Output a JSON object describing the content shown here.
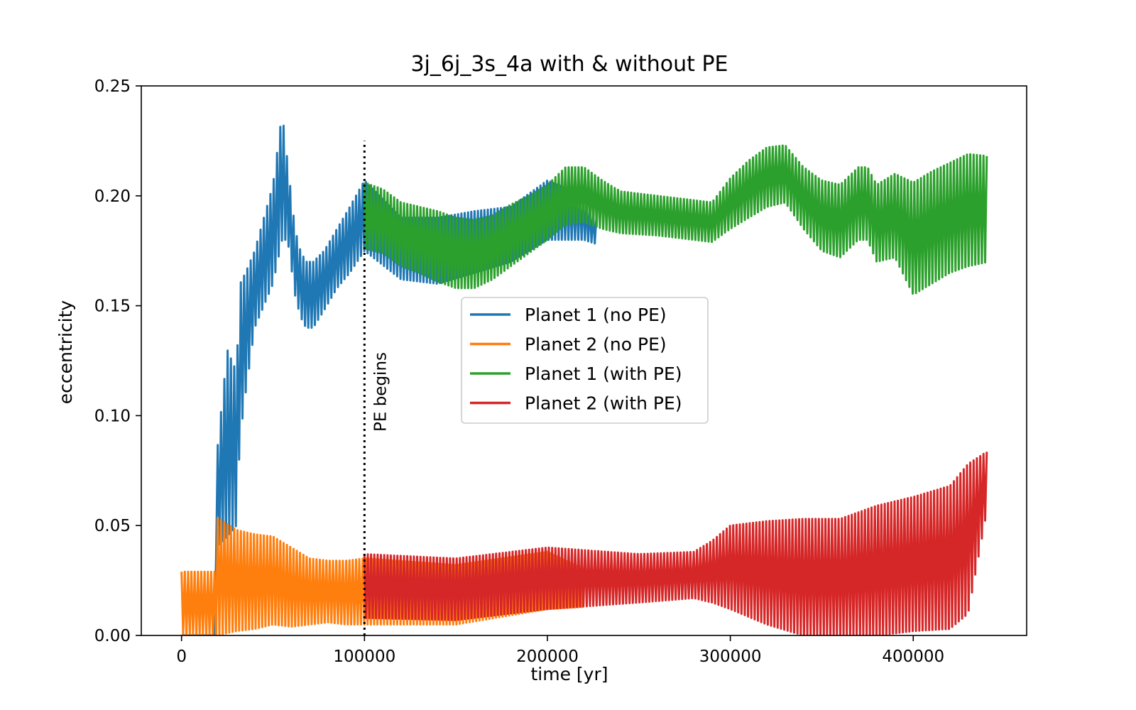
{
  "chart_data": {
    "type": "line",
    "title": "3j_6j_3s_4a with & without PE",
    "xlabel": "time [yr]",
    "ylabel": "eccentricity",
    "xlim": [
      -22000,
      462000
    ],
    "ylim": [
      0,
      0.25
    ],
    "x_ticks": [
      "0",
      "100000",
      "200000",
      "300000",
      "400000"
    ],
    "x_tick_values": [
      0,
      100000,
      200000,
      300000,
      400000
    ],
    "y_ticks": [
      "0.00",
      "0.05",
      "0.10",
      "0.15",
      "0.20",
      "0.25"
    ],
    "y_tick_values": [
      0,
      0.05,
      0.1,
      0.15,
      0.2,
      0.25
    ],
    "grid": false,
    "legend_position": "center",
    "annotation": {
      "text": "PE begins",
      "x": 100000,
      "y_top": 0.225
    },
    "series": [
      {
        "name": "Planet 1 (no PE)",
        "color": "#1f77b4",
        "band": {
          "x": [
            0,
            18000,
            19000,
            25000,
            30000,
            32000,
            35000,
            40000,
            45000,
            50000,
            55000,
            58000,
            62000,
            65000,
            68000,
            72000,
            78000,
            85000,
            92000,
            100000,
            120000,
            140000,
            160000,
            180000,
            200000,
            220000,
            227000
          ],
          "upper": [
            0,
            0.0,
            0.08,
            0.13,
            0.12,
            0.16,
            0.165,
            0.175,
            0.19,
            0.205,
            0.238,
            0.215,
            0.185,
            0.175,
            0.17,
            0.17,
            0.175,
            0.185,
            0.195,
            0.207,
            0.19,
            0.19,
            0.193,
            0.195,
            0.207,
            0.2,
            0.19
          ],
          "lower": [
            0,
            0.0,
            0.04,
            0.045,
            0.05,
            0.09,
            0.11,
            0.14,
            0.15,
            0.16,
            0.18,
            0.18,
            0.155,
            0.145,
            0.14,
            0.14,
            0.148,
            0.158,
            0.165,
            0.175,
            0.162,
            0.16,
            0.165,
            0.17,
            0.18,
            0.18,
            0.178
          ]
        }
      },
      {
        "name": "Planet 2 (no PE)",
        "color": "#ff7f0e",
        "band": {
          "x": [
            0,
            18000,
            19000,
            30000,
            40000,
            50000,
            60000,
            70000,
            80000,
            90000,
            100000,
            150000,
            200000,
            220000
          ],
          "upper": [
            0.029,
            0.029,
            0.054,
            0.048,
            0.046,
            0.045,
            0.04,
            0.035,
            0.034,
            0.034,
            0.035,
            0.032,
            0.038,
            0.03
          ],
          "lower": [
            0.0,
            0.0,
            0.0,
            0.002,
            0.003,
            0.005,
            0.004,
            0.005,
            0.006,
            0.005,
            0.005,
            0.005,
            0.012,
            0.013
          ]
        }
      },
      {
        "name": "Planet 1 (with PE)",
        "color": "#2ca02c",
        "band": {
          "x": [
            100000,
            110000,
            120000,
            130000,
            140000,
            150000,
            160000,
            170000,
            180000,
            190000,
            200000,
            210000,
            220000,
            230000,
            240000,
            260000,
            280000,
            290000,
            300000,
            310000,
            320000,
            330000,
            340000,
            350000,
            360000,
            370000,
            375000,
            380000,
            390000,
            400000,
            410000,
            420000,
            430000,
            441000
          ],
          "upper": [
            0.206,
            0.203,
            0.197,
            0.195,
            0.193,
            0.19,
            0.189,
            0.191,
            0.196,
            0.2,
            0.205,
            0.213,
            0.213,
            0.207,
            0.202,
            0.2,
            0.198,
            0.197,
            0.208,
            0.216,
            0.222,
            0.223,
            0.213,
            0.207,
            0.205,
            0.213,
            0.213,
            0.205,
            0.21,
            0.206,
            0.211,
            0.215,
            0.219,
            0.218
          ],
          "lower": [
            0.176,
            0.174,
            0.168,
            0.165,
            0.161,
            0.158,
            0.158,
            0.162,
            0.168,
            0.174,
            0.18,
            0.187,
            0.188,
            0.185,
            0.183,
            0.182,
            0.18,
            0.179,
            0.185,
            0.19,
            0.195,
            0.197,
            0.185,
            0.175,
            0.172,
            0.18,
            0.18,
            0.17,
            0.172,
            0.155,
            0.16,
            0.165,
            0.168,
            0.17
          ]
        }
      },
      {
        "name": "Planet 2 (with PE)",
        "color": "#d62728",
        "band": {
          "x": [
            100000,
            150000,
            200000,
            250000,
            280000,
            290000,
            300000,
            320000,
            340000,
            360000,
            380000,
            400000,
            420000,
            430000,
            441000
          ],
          "upper": [
            0.037,
            0.035,
            0.04,
            0.037,
            0.038,
            0.043,
            0.05,
            0.052,
            0.053,
            0.053,
            0.059,
            0.063,
            0.068,
            0.078,
            0.084
          ],
          "lower": [
            0.008,
            0.007,
            0.012,
            0.015,
            0.017,
            0.015,
            0.012,
            0.005,
            0.0,
            0.0,
            0.0,
            0.002,
            0.003,
            0.01,
            0.06
          ]
        }
      }
    ]
  }
}
